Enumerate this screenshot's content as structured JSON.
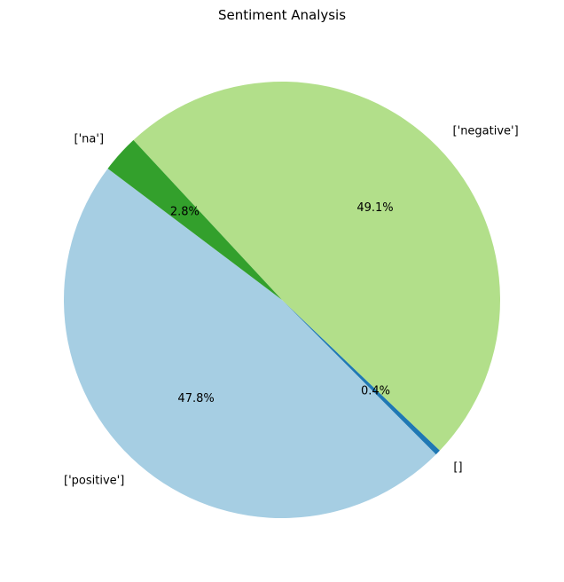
{
  "chart_data": {
    "type": "pie",
    "title": "Sentiment Analysis",
    "start_angle_deg": 143,
    "direction": "counterclockwise",
    "slices": [
      {
        "label": "['positive']",
        "value": 47.8,
        "pct_text": "47.8%",
        "color": "#a6cee3"
      },
      {
        "label": "[]",
        "value": 0.4,
        "pct_text": "0.4%",
        "color": "#1f78b4"
      },
      {
        "label": "['negative']",
        "value": 49.1,
        "pct_text": "49.1%",
        "color": "#b2df8a"
      },
      {
        "label": "['na']",
        "value": 2.8,
        "pct_text": "2.8%",
        "color": "#33a02c"
      }
    ]
  }
}
